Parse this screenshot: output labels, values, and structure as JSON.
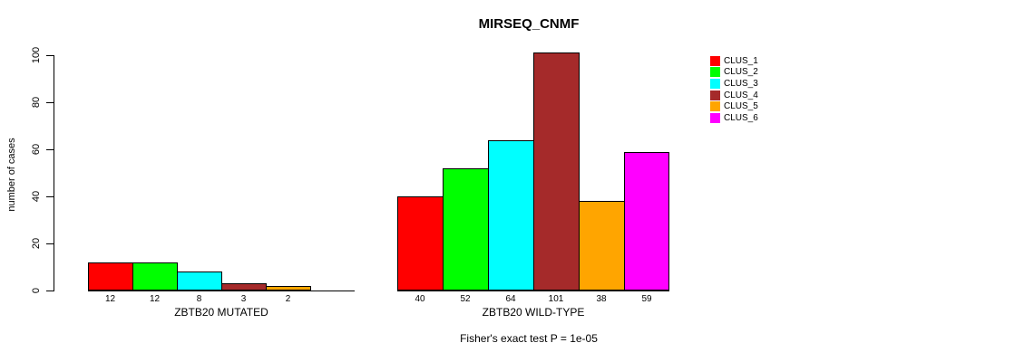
{
  "chart_data": {
    "type": "bar",
    "title": "MIRSEQ_CNMF",
    "ylabel": "number of cases",
    "ylim": [
      0,
      100
    ],
    "yticks": [
      0,
      20,
      40,
      60,
      80,
      100
    ],
    "grid": false,
    "legend_position": "top-right-outside-plot",
    "series": [
      {
        "name": "CLUS_1",
        "color": "#FF0000"
      },
      {
        "name": "CLUS_2",
        "color": "#00FF00"
      },
      {
        "name": "CLUS_3",
        "color": "#00FFFF"
      },
      {
        "name": "CLUS_4",
        "color": "#A52A2A"
      },
      {
        "name": "CLUS_5",
        "color": "#FFA500"
      },
      {
        "name": "CLUS_6",
        "color": "#FF00FF"
      }
    ],
    "groups": [
      {
        "label": "ZBTB20 MUTATED",
        "values": [
          12,
          12,
          8,
          3,
          2,
          0
        ],
        "value_labels": [
          "12",
          "12",
          "8",
          "3",
          "2",
          ""
        ]
      },
      {
        "label": "ZBTB20 WILD-TYPE",
        "values": [
          40,
          52,
          64,
          101,
          38,
          59
        ],
        "value_labels": [
          "40",
          "52",
          "64",
          "101",
          "38",
          "59"
        ]
      }
    ],
    "footnote": "Fisher's exact test P = 1e-05"
  }
}
